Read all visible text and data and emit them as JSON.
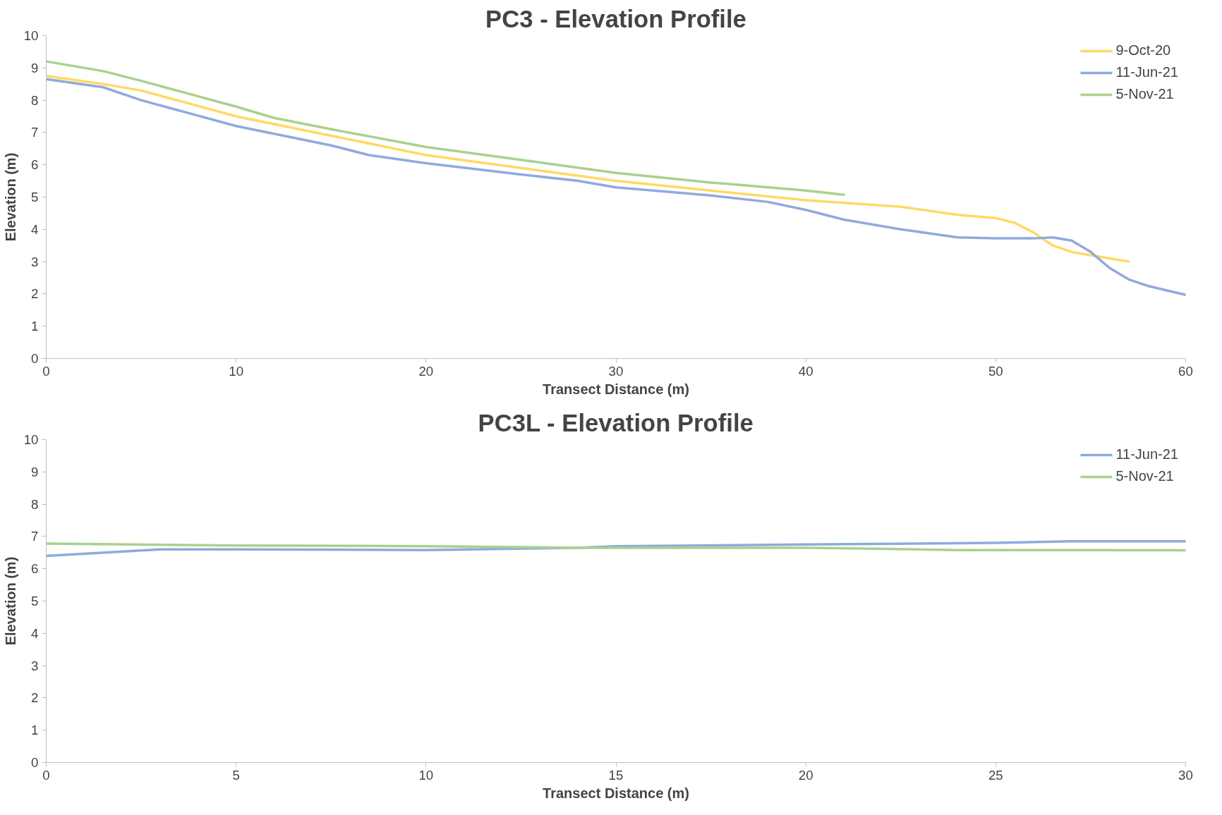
{
  "chart_data": [
    {
      "type": "line",
      "title": "PC3 - Elevation Profile",
      "xlabel": "Transect Distance (m)",
      "ylabel": "Elevation (m)",
      "xlim": [
        0,
        60
      ],
      "xticks": [
        0,
        10,
        20,
        30,
        40,
        50,
        60
      ],
      "ylim": [
        0,
        10
      ],
      "yticks": [
        0,
        1,
        2,
        3,
        4,
        5,
        6,
        7,
        8,
        9,
        10
      ],
      "grid": false,
      "legend": "top right",
      "line_style": "solid",
      "series": [
        {
          "name": "9-Oct-20",
          "color": "#ffd966",
          "x": [
            0,
            3,
            5,
            10,
            15,
            20,
            25,
            30,
            35,
            40,
            45,
            48,
            50,
            51,
            52,
            53,
            54,
            55,
            57
          ],
          "values": [
            8.75,
            8.5,
            8.3,
            7.5,
            6.9,
            6.3,
            5.9,
            5.5,
            5.2,
            4.9,
            4.7,
            4.45,
            4.35,
            4.2,
            3.9,
            3.5,
            3.3,
            3.2,
            3.0
          ]
        },
        {
          "name": "11-Jun-21",
          "color": "#8faadc",
          "x": [
            0,
            3,
            5,
            10,
            15,
            17,
            20,
            25,
            28,
            30,
            35,
            38,
            40,
            42,
            45,
            48,
            50,
            52,
            53,
            54,
            55,
            56,
            57,
            58,
            60
          ],
          "values": [
            8.65,
            8.4,
            8.0,
            7.2,
            6.6,
            6.3,
            6.05,
            5.7,
            5.5,
            5.3,
            5.05,
            4.85,
            4.6,
            4.3,
            4.0,
            3.75,
            3.72,
            3.72,
            3.75,
            3.65,
            3.3,
            2.8,
            2.45,
            2.25,
            1.97
          ]
        },
        {
          "name": "5-Nov-21",
          "color": "#a9d18e",
          "x": [
            0,
            3,
            5,
            10,
            12,
            15,
            20,
            25,
            30,
            35,
            40,
            42
          ],
          "values": [
            9.2,
            8.9,
            8.6,
            7.8,
            7.45,
            7.1,
            6.55,
            6.15,
            5.75,
            5.45,
            5.2,
            5.07
          ]
        }
      ]
    },
    {
      "type": "line",
      "title": "PC3L - Elevation Profile",
      "xlabel": "Transect Distance (m)",
      "ylabel": "Elevation (m)",
      "xlim": [
        0,
        30
      ],
      "xticks": [
        0,
        5,
        10,
        15,
        20,
        25,
        30
      ],
      "ylim": [
        0,
        10
      ],
      "yticks": [
        0,
        1,
        2,
        3,
        4,
        5,
        6,
        7,
        8,
        9,
        10
      ],
      "grid": false,
      "legend": "top right",
      "line_style": "solid",
      "series": [
        {
          "name": "11-Jun-21",
          "color": "#8faadc",
          "x": [
            0,
            3,
            5,
            10,
            14,
            15,
            20,
            25,
            27,
            30
          ],
          "values": [
            6.4,
            6.6,
            6.6,
            6.58,
            6.65,
            6.7,
            6.75,
            6.8,
            6.85,
            6.85
          ]
        },
        {
          "name": "5-Nov-21",
          "color": "#a9d18e",
          "x": [
            0,
            5,
            10,
            14,
            20,
            24,
            30
          ],
          "values": [
            6.78,
            6.72,
            6.7,
            6.65,
            6.65,
            6.58,
            6.57
          ]
        }
      ]
    }
  ]
}
